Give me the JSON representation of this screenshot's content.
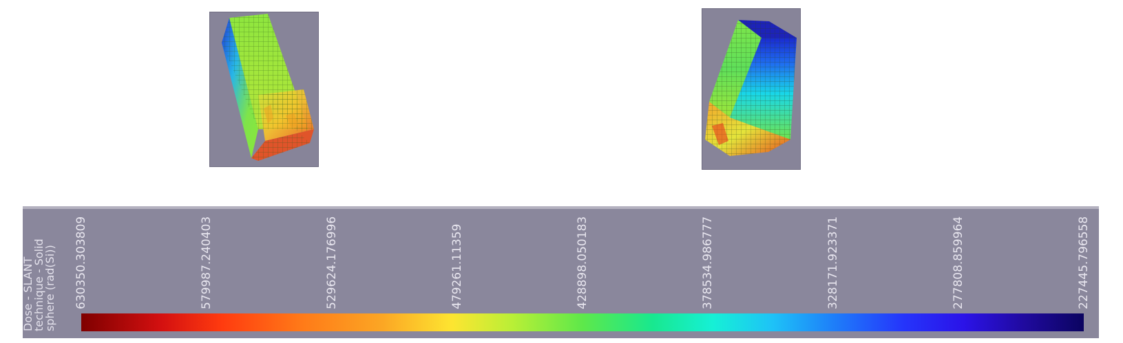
{
  "legend": {
    "title_lines": [
      "Dose - SLANT",
      "technique - Solid",
      "sphere (rad(Si))"
    ],
    "ticks": [
      "630350.303809",
      "579987.240403",
      "529624.176996",
      "479261.11359",
      "428898.050183",
      "378534.986777",
      "328171.923371",
      "277808.859964",
      "227445.796558"
    ]
  },
  "colorbar": {
    "colors": [
      "#7f0000",
      "#ff3b0f",
      "#fde531",
      "#5ee84a",
      "#16f0d6",
      "#1e7ff9",
      "#2b13e8",
      "#0b0460"
    ]
  },
  "viewports": {
    "background": "#878499"
  }
}
